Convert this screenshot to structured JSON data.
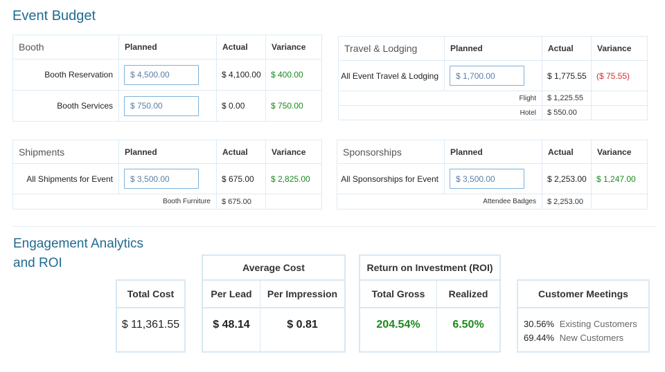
{
  "page_title": "Event Budget",
  "columns": {
    "planned": "Planned",
    "actual": "Actual",
    "variance": "Variance"
  },
  "booth": {
    "label": "Booth",
    "rows": [
      {
        "label": "Booth Reservation",
        "planned": "$ 4,500.00",
        "actual": "$ 4,100.00",
        "variance": "$ 400.00"
      },
      {
        "label": "Booth Services",
        "planned": "$ 750.00",
        "actual": "$ 0.00",
        "variance": "$ 750.00"
      }
    ]
  },
  "travel": {
    "label": "Travel & Lodging",
    "row": {
      "label": "All Event Travel & Lodging",
      "planned": "$ 1,700.00",
      "actual": "$ 1,775.55",
      "variance": "($ 75.55)"
    },
    "subs": [
      {
        "label": "Flight",
        "value": "$ 1,225.55"
      },
      {
        "label": "Hotel",
        "value": "$ 550.00"
      }
    ]
  },
  "shipments": {
    "label": "Shipments",
    "row": {
      "label": "All Shipments for Event",
      "planned": "$ 3,500.00",
      "actual": "$ 675.00",
      "variance": "$ 2,825.00"
    },
    "subs": [
      {
        "label": "Booth Furniture",
        "value": "$ 675.00"
      }
    ]
  },
  "sponsorships": {
    "label": "Sponsorships",
    "row": {
      "label": "All Sponsorships for Event",
      "planned": "$ 3,500.00",
      "actual": "$ 2,253.00",
      "variance": "$ 1,247.00"
    },
    "subs": [
      {
        "label": "Attendee Badges",
        "value": "$ 2,253.00"
      }
    ]
  },
  "analytics": {
    "title_line1": "Engagement Analytics",
    "title_line2": "and ROI",
    "total_cost": {
      "header": "Total Cost",
      "value": "$ 11,361.55"
    },
    "average_cost": {
      "header": "Average Cost",
      "per_lead_label": "Per Lead",
      "per_lead_value": "$ 48.14",
      "per_impression_label": "Per Impression",
      "per_impression_value": "$ 0.81"
    },
    "roi": {
      "header": "Return on Investment (ROI)",
      "total_gross_label": "Total Gross",
      "total_gross_value": "204.54%",
      "realized_label": "Realized",
      "realized_value": "6.50%"
    },
    "customer_meetings": {
      "header": "Customer Meetings",
      "rows": [
        {
          "pct": "30.56%",
          "label": "Existing Customers"
        },
        {
          "pct": "69.44%",
          "label": "New Customers"
        }
      ]
    }
  },
  "colors": {
    "accent": "#1f6a92",
    "positive": "#1a8a1a",
    "negative": "#d03030",
    "input_border": "#7cb1d8"
  }
}
